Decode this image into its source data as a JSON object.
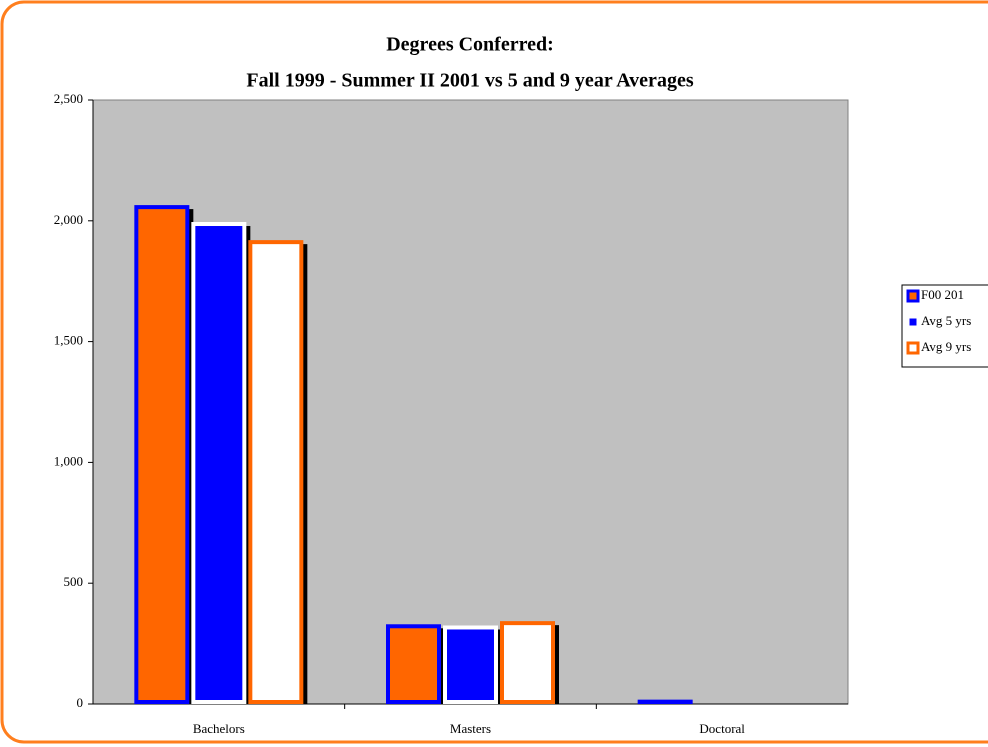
{
  "chart_data": {
    "type": "bar",
    "title": [
      "Degrees Conferred:",
      "Fall 1999 - Summer II 2001 vs 5 and 9 year Averages"
    ],
    "categories": [
      "Bachelors",
      "Masters",
      "Doctoral"
    ],
    "series": [
      {
        "name": "F00 201",
        "color": "#ff6600",
        "border": "#0000ff",
        "values": [
          2065,
          330,
          18
        ]
      },
      {
        "name": "Avg 5 yrs",
        "color": "#0000ff",
        "border": "#ffffff",
        "values": [
          1995,
          325,
          12
        ]
      },
      {
        "name": "Avg 9 yrs",
        "color": "#ffffff",
        "border": "#ff6600",
        "values": [
          1920,
          343,
          10
        ]
      }
    ],
    "ylim": [
      0,
      2500
    ],
    "yticks": [
      0,
      500,
      {
        "value": 1000,
        "label": "1,000"
      },
      {
        "value": 1500,
        "label": "1,500"
      },
      {
        "value": 2000,
        "label": "2,000"
      },
      {
        "value": 2500,
        "label": "2,500"
      }
    ],
    "plot_background": "#c0c0c0",
    "legend": "right"
  }
}
